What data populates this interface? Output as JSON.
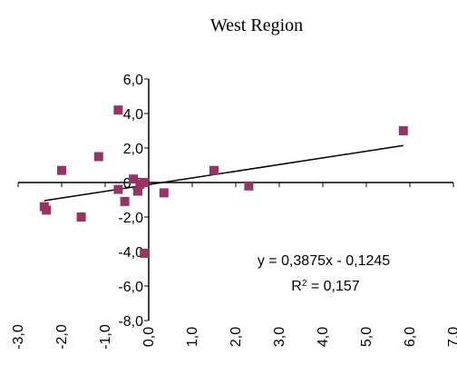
{
  "chart_data": {
    "type": "scatter",
    "title": "West Region",
    "xlim": [
      -3.0,
      7.0
    ],
    "ylim": [
      -8.0,
      6.0
    ],
    "x_ticks": [
      -3.0,
      -2.0,
      -1.0,
      0.0,
      1.0,
      2.0,
      3.0,
      4.0,
      5.0,
      6.0,
      7.0
    ],
    "y_ticks": [
      -8.0,
      -6.0,
      -4.0,
      -2.0,
      0.0,
      2.0,
      4.0,
      6.0
    ],
    "x_tick_labels": [
      "-3,0",
      "-2,0",
      "-1,0",
      "0,0",
      "1,0",
      "2,0",
      "3,0",
      "4,0",
      "5,0",
      "6,0",
      "7,0"
    ],
    "y_tick_labels": [
      "-8,0",
      "-6,0",
      "-4,0",
      "-2,0",
      "0,0",
      "2,0",
      "4,0",
      "6,0"
    ],
    "marker_color": "#993366",
    "trendline_color": "#000000",
    "points": [
      {
        "x": -2.4,
        "y": -1.4
      },
      {
        "x": -2.35,
        "y": -1.6
      },
      {
        "x": -2.0,
        "y": 0.7
      },
      {
        "x": -1.55,
        "y": -2.0
      },
      {
        "x": -1.15,
        "y": 1.5
      },
      {
        "x": -0.7,
        "y": 4.2
      },
      {
        "x": -0.7,
        "y": -0.4
      },
      {
        "x": -0.55,
        "y": -1.1
      },
      {
        "x": -0.35,
        "y": 0.2
      },
      {
        "x": -0.25,
        "y": -0.5
      },
      {
        "x": -0.2,
        "y": -0.1
      },
      {
        "x": -0.1,
        "y": -4.1
      },
      {
        "x": -0.1,
        "y": 0.0
      },
      {
        "x": 0.35,
        "y": -0.6
      },
      {
        "x": 1.5,
        "y": 0.7
      },
      {
        "x": 2.3,
        "y": -0.2
      },
      {
        "x": 5.85,
        "y": 3.0
      }
    ],
    "trendline": {
      "x_range": [
        -2.4,
        5.85
      ],
      "equation_label": "y = 0,3875x - 0,1245",
      "r2_label_prefix": "R",
      "r2_label_sup": "2",
      "r2_label_suffix": " = 0,157",
      "slope": 0.3875,
      "intercept": -0.1245
    }
  }
}
